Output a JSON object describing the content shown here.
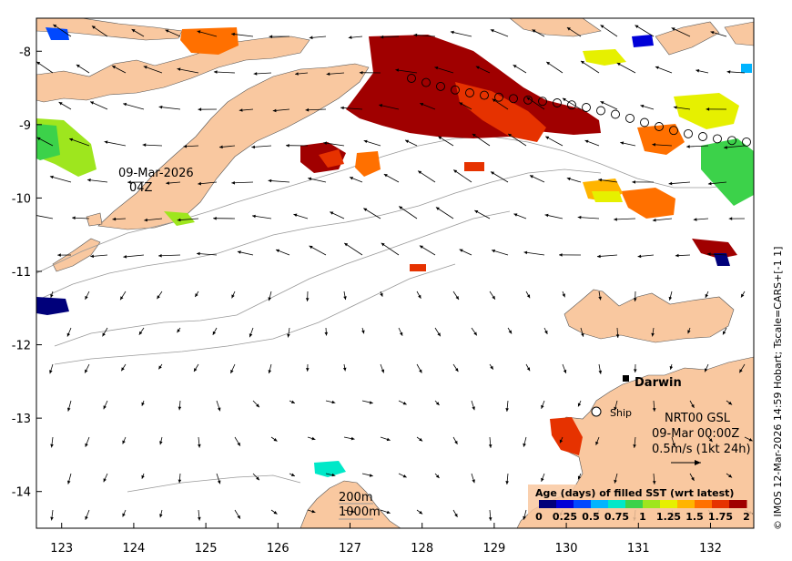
{
  "map": {
    "x_ticks": [
      "123",
      "124",
      "125",
      "126",
      "127",
      "128",
      "129",
      "130",
      "131",
      "132"
    ],
    "y_ticks": [
      "-8",
      "-9",
      "-10",
      "-11",
      "-12",
      "-13",
      "-14"
    ],
    "x_range": [
      122.65,
      132.6
    ],
    "y_range": [
      -14.5,
      -7.55
    ],
    "land_color": "#f9c8a0",
    "date_label_line1": "09-Mar-2026",
    "date_label_line2": "04Z",
    "city_label": "Darwin",
    "ship_label": "Ship",
    "info_line1": "NRT00 GSL",
    "info_line2": "09-Mar 00:00Z",
    "info_line3": "0.5m/s (1kt 24h)",
    "contour_label_1": "200m",
    "contour_label_2": "1000m",
    "side_credit": "© IMOS 12-Mar-2026 14:59 Hobart; Tscale=CARS+[-1 1]"
  },
  "colorbar": {
    "title": "Age (days) of filled SST (wrt latest)",
    "tick_labels": [
      "0",
      "0.25",
      "0.5",
      "0.75",
      "1",
      "1.25",
      "1.5",
      "1.75",
      "2"
    ],
    "range": [
      0,
      2
    ],
    "colors": [
      "#00007a",
      "#0000d8",
      "#0048ff",
      "#00b4ff",
      "#00e8c8",
      "#3cd24a",
      "#9ee61e",
      "#e6f000",
      "#ffb400",
      "#ff7000",
      "#e63200",
      "#a00000"
    ]
  }
}
